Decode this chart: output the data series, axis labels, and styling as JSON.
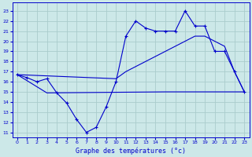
{
  "title": "Graphe des températures (°c)",
  "bg_color": "#cce8e8",
  "grid_color": "#aacccc",
  "line_color": "#0000cc",
  "x_ticks": [
    0,
    1,
    2,
    3,
    4,
    5,
    6,
    7,
    8,
    9,
    10,
    11,
    12,
    13,
    14,
    15,
    16,
    17,
    18,
    19,
    20,
    21,
    22,
    23
  ],
  "y_ticks": [
    11,
    12,
    13,
    14,
    15,
    16,
    17,
    18,
    19,
    20,
    21,
    22,
    23
  ],
  "ylim": [
    10.5,
    23.8
  ],
  "xlim": [
    -0.5,
    23.5
  ],
  "series1_x": [
    0,
    1,
    2,
    3,
    4,
    5,
    6,
    7,
    8,
    9,
    10,
    11,
    12,
    13,
    14,
    15,
    16,
    17,
    18,
    19,
    20,
    21,
    22,
    23
  ],
  "series1_y": [
    16.7,
    16.4,
    16.0,
    16.3,
    14.9,
    13.9,
    12.3,
    11.0,
    11.5,
    13.5,
    16.0,
    20.5,
    22.0,
    21.3,
    21.0,
    21.0,
    21.0,
    23.0,
    21.5,
    21.5,
    19.0,
    19.0,
    17.0,
    15.0
  ],
  "series2_x": [
    0,
    10,
    11,
    12,
    13,
    14,
    15,
    16,
    17,
    18,
    19,
    20,
    21,
    22,
    23
  ],
  "series2_y": [
    16.7,
    16.3,
    17.0,
    17.5,
    18.0,
    18.5,
    19.0,
    19.5,
    20.0,
    20.5,
    20.5,
    20.0,
    19.5,
    17.0,
    15.0
  ],
  "series3_x": [
    0,
    3,
    15,
    22,
    23
  ],
  "series3_y": [
    16.7,
    14.9,
    15.0,
    15.0,
    15.0
  ]
}
